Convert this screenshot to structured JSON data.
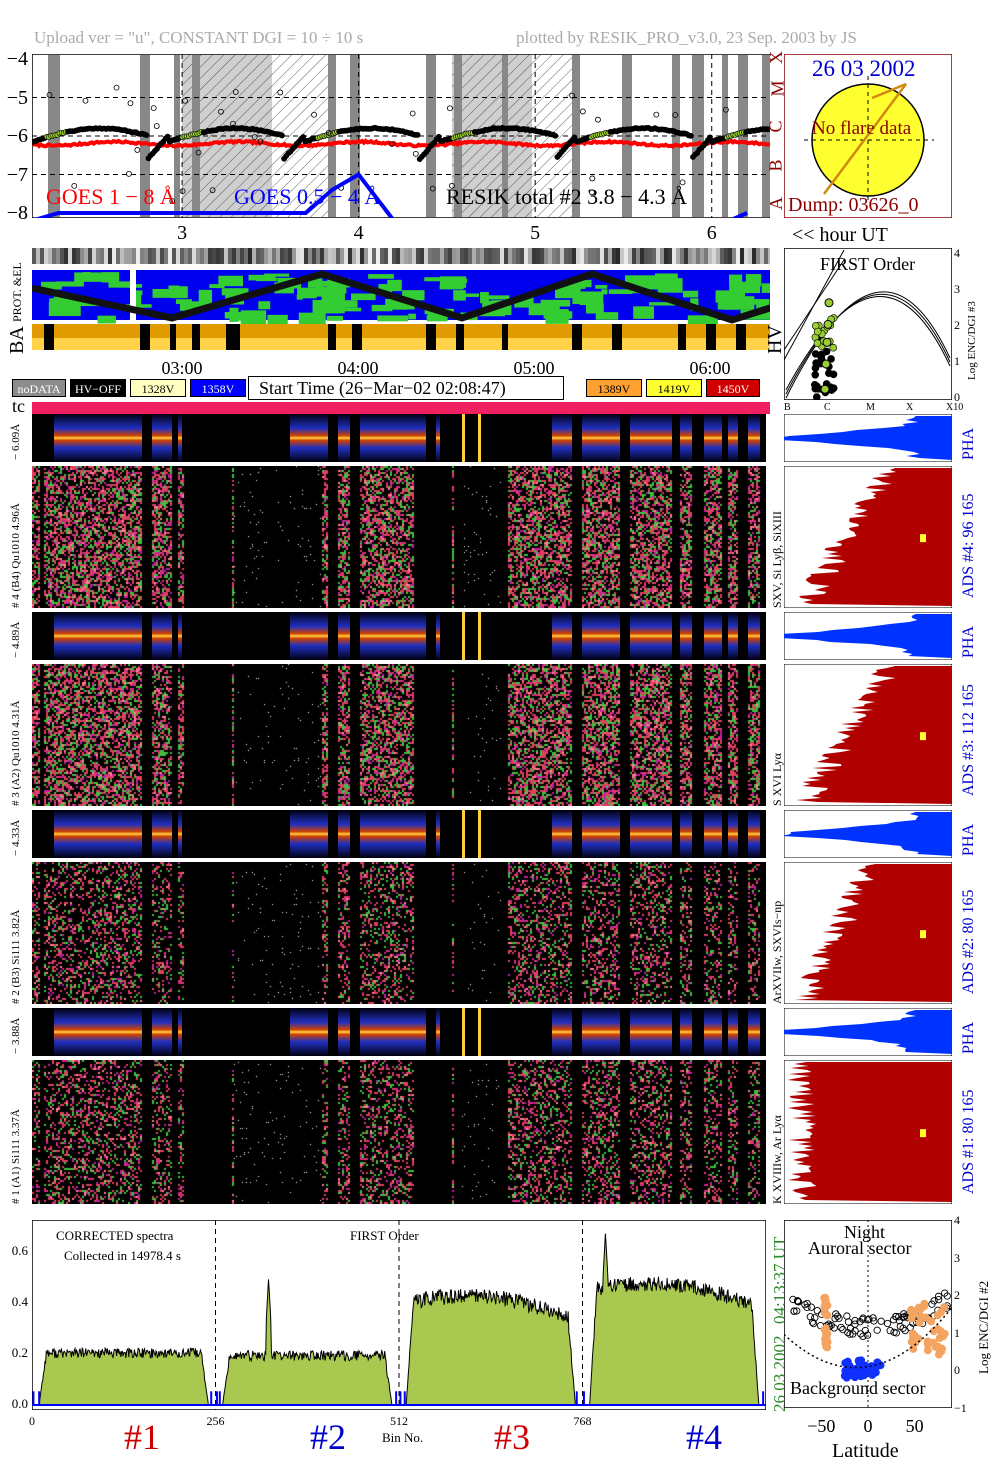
{
  "header": {
    "upload_info": "Upload ver = \"u\", CONSTANT  DGI =  10 ÷  10 s",
    "plotted_by": "plotted by RESIK_PRO_v3.0, 23 Sep. 2003 by JS"
  },
  "goes": {
    "label_1_8": "GOES 1 − 8 Å",
    "label_05_4": "GOES 0.5 − 4 Å",
    "label_resik": "RESIK total #2  3.8 − 4.3 Å",
    "y_ticks": [
      "−4",
      "−5",
      "−6",
      "−7",
      "−8"
    ],
    "class_letters": [
      "X",
      "M",
      "C",
      "B",
      "A"
    ],
    "hour_ticks": [
      "3",
      "4",
      "5",
      "6"
    ],
    "hour_label": "<< hour UT"
  },
  "sun_box": {
    "date": "26 03 2002",
    "message": "No flare data",
    "dump": "Dump: 03626_0"
  },
  "orbit": {
    "prot_el_label": "PROT. &EL",
    "ba_label": "BA",
    "hv_label": "HV",
    "time_ticks": [
      "03:00",
      "04:00",
      "05:00",
      "06:00"
    ]
  },
  "first_order": {
    "title": "FIRST Order",
    "y_label": "Log ENC/DGI #3",
    "y_ticks": [
      "4",
      "3",
      "2",
      "1",
      "0"
    ],
    "x_ticks": [
      "B",
      "C",
      "M",
      "X",
      "X10"
    ]
  },
  "legend": {
    "items": [
      {
        "label": "noDATA",
        "bg": "#8c8c8c",
        "fg": "#ffffff"
      },
      {
        "label": "HV−OFF",
        "bg": "#000000",
        "fg": "#ffffff"
      },
      {
        "label": "1328V",
        "bg": "#ffffc0",
        "fg": "#000000"
      },
      {
        "label": "1358V",
        "bg": "#0000ff",
        "fg": "#ffffff"
      },
      {
        "label": "1389V",
        "bg": "#ffa030",
        "fg": "#000000"
      },
      {
        "label": "1419V",
        "bg": "#ffff30",
        "fg": "#000000"
      },
      {
        "label": "1450V",
        "bg": "#d00000",
        "fg": "#ffffff"
      }
    ],
    "start_time": "Start Time (26−Mar−02 02:08:47)",
    "tc_label": "tc"
  },
  "channels": [
    {
      "pha_label": "− 6.09Å",
      "spec_label": "# 4 (B4) Qu1010  4.96Å",
      "line_label": "SXV, Si Lyβ, SiXIII",
      "ads_label": "ADS #4:   96 165",
      "pha_side": "PHA"
    },
    {
      "pha_label": "− 4.89Å",
      "spec_label": "# 3 (A2) Qu1010  4.31Å",
      "line_label": "S XVI Lyα",
      "ads_label": "ADS #3:  112 165",
      "pha_side": "PHA"
    },
    {
      "pha_label": "− 4.33Å",
      "spec_label": "# 2 (B3) Si111  3.82Å",
      "line_label": "ArXVIIw, SXVIs−np",
      "ads_label": "ADS #2:   80 165",
      "pha_side": "PHA"
    },
    {
      "pha_label": "− 3.88Å",
      "spec_label": "# 1 (A1) Si111  3.37Å",
      "line_label": "K XVIIIw, Ar Lyα",
      "ads_label": "ADS #1:   80 165",
      "pha_side": "PHA"
    }
  ],
  "corrected": {
    "title": "CORRECTED spectra",
    "collected": "Collected in 14978.4 s",
    "first_order": "FIRST Order",
    "bin_label": "Bin No.",
    "x_ticks": [
      "0",
      "256",
      "512",
      "768"
    ],
    "y_ticks": [
      "0.6",
      "0.4",
      "0.2",
      "0.0"
    ],
    "side_date": "26 03 2002",
    "side_time": "04:13:37 UT",
    "detector_labels": [
      {
        "label": "#1",
        "color": "#cc0000"
      },
      {
        "label": "#2",
        "color": "#0000cc"
      },
      {
        "label": "#3",
        "color": "#cc0000"
      },
      {
        "label": "#4",
        "color": "#0000cc"
      }
    ]
  },
  "latitude": {
    "night": "Night",
    "auroral": "Auroral sector",
    "background": "Background sector",
    "x_label": "Latitude",
    "x_ticks": [
      "−50",
      "0",
      "50"
    ],
    "y_label": "Log ENC/DGI #2",
    "y_ticks": [
      "4",
      "3",
      "2",
      "1",
      "0",
      "−1"
    ]
  },
  "chart_data": [
    {
      "type": "line",
      "title": "",
      "xlabel": "hour UT",
      "ylabel": "",
      "x_ticks": [
        3,
        4,
        5,
        6
      ],
      "ylim": [
        -8,
        -4
      ],
      "series": [
        {
          "name": "GOES 1 − 8 Å",
          "x": [
            2.15,
            2.5,
            3.0,
            3.5,
            4.0,
            4.5,
            5.0,
            5.5,
            6.0,
            6.3
          ],
          "values": [
            -6.15,
            -6.2,
            -6.25,
            -6.2,
            -6.3,
            -6.25,
            -6.25,
            -6.2,
            -6.25,
            -6.25
          ]
        },
        {
          "name": "GOES 0.5 − 4 Å",
          "x": [
            2.15,
            2.3,
            3.7,
            3.85,
            4.0,
            4.2,
            6.1,
            6.2
          ],
          "values": [
            -8.2,
            -8.0,
            -8.0,
            -7.4,
            -7.0,
            -8.2,
            -8.2,
            -8.0
          ]
        },
        {
          "name": "RESIK total #2  3.8 − 4.3 Å",
          "x": [
            2.15,
            2.3,
            2.6,
            2.95,
            3.6,
            3.8,
            3.9,
            4.35,
            4.95,
            5.1,
            5.5,
            5.85,
            6.3
          ],
          "values": [
            -6.0,
            -6.5,
            -6.3,
            -6.1,
            -6.5,
            -6.0,
            -5.8,
            -6.0,
            -6.1,
            -6.6,
            -6.5,
            -6.0,
            -6.2
          ]
        }
      ]
    },
    {
      "type": "area",
      "title": "",
      "xlabel": "Bin No.",
      "ylabel": "",
      "xlim": [
        0,
        1024
      ],
      "ylim": [
        0,
        0.7
      ],
      "segments": [
        {
          "name": "#1",
          "x_range": [
            10,
            246
          ],
          "level": 0.2
        },
        {
          "name": "#2",
          "x_range": [
            266,
            502
          ],
          "level": 0.19
        },
        {
          "name": "#3",
          "x_range": [
            522,
            758
          ],
          "level": 0.4
        },
        {
          "name": "#4",
          "x_range": [
            778,
            1014
          ],
          "level": 0.45
        }
      ],
      "peaks": [
        {
          "x": 330,
          "value": 0.49
        },
        {
          "x": 800,
          "value": 0.67
        }
      ]
    },
    {
      "type": "scatter",
      "title": "",
      "xlabel": "Latitude",
      "ylabel": "Log ENC/DGI #2",
      "xlim": [
        -90,
        90
      ],
      "ylim": [
        -1,
        4
      ],
      "series": [
        {
          "name": "",
          "x": [
            -80,
            -60,
            -40,
            -20,
            0,
            20,
            40,
            60,
            80
          ],
          "values": [
            1.2,
            1.0,
            1.0,
            0.9,
            0.9,
            1.0,
            1.2,
            1.5,
            1.6
          ]
        },
        {
          "name": "",
          "x": [
            -45,
            -45,
            -45,
            50,
            55,
            60,
            65
          ],
          "values": [
            1.8,
            1.2,
            0.8,
            1.6,
            1.0,
            0.6,
            1.2
          ]
        },
        {
          "name": "",
          "x": [
            -20,
            -10,
            0,
            10
          ],
          "values": [
            0.1,
            0.0,
            0.2,
            0.0
          ]
        }
      ]
    },
    {
      "type": "scatter",
      "title": "FIRST Order",
      "xlabel": "",
      "ylabel": "Log ENC/DGI #3",
      "x_ticks": [
        "B",
        "C",
        "M",
        "X",
        "X10"
      ],
      "ylim": [
        0,
        4
      ],
      "series": [
        {
          "name": "",
          "x": [
            1.1,
            1.2,
            1.3,
            1.4,
            1.5
          ],
          "values": [
            0.3,
            1.0,
            1.6,
            2.1,
            2.7
          ]
        }
      ]
    }
  ]
}
